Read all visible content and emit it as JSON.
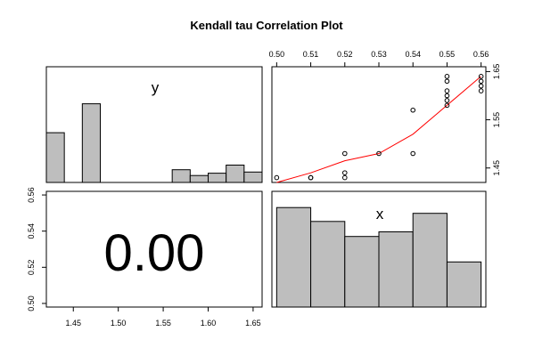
{
  "title": "Kendall tau Correlation Plot",
  "colors": {
    "bar_fill": "#bebebe",
    "smoother": "#ff0000",
    "background": "#ffffff"
  },
  "chart_data": [
    {
      "type": "bar",
      "panel": "histogram-y",
      "label": "y",
      "xlim": [
        1.42,
        1.66
      ],
      "bins": [
        {
          "from": 1.42,
          "to": 1.44,
          "height": 0.43
        },
        {
          "from": 1.46,
          "to": 1.48,
          "height": 0.68
        },
        {
          "from": 1.56,
          "to": 1.58,
          "height": 0.11
        },
        {
          "from": 1.58,
          "to": 1.6,
          "height": 0.06
        },
        {
          "from": 1.6,
          "to": 1.62,
          "height": 0.08
        },
        {
          "from": 1.62,
          "to": 1.64,
          "height": 0.15
        },
        {
          "from": 1.64,
          "to": 1.66,
          "height": 0.09
        }
      ]
    },
    {
      "type": "scatter",
      "panel": "x-vs-y",
      "xlim": [
        0.5,
        0.56
      ],
      "ylim": [
        1.42,
        1.66
      ],
      "x_ticks": [
        "0.50",
        "0.51",
        "0.52",
        "0.53",
        "0.54",
        "0.55",
        "0.56"
      ],
      "y_ticks": [
        "1.45",
        "1.55",
        "1.65"
      ],
      "points": [
        [
          0.5,
          1.43
        ],
        [
          0.51,
          1.43
        ],
        [
          0.51,
          1.43
        ],
        [
          0.52,
          1.43
        ],
        [
          0.52,
          1.44
        ],
        [
          0.52,
          1.48
        ],
        [
          0.53,
          1.48
        ],
        [
          0.54,
          1.48
        ],
        [
          0.54,
          1.57
        ],
        [
          0.55,
          1.58
        ],
        [
          0.55,
          1.59
        ],
        [
          0.55,
          1.6
        ],
        [
          0.55,
          1.61
        ],
        [
          0.55,
          1.63
        ],
        [
          0.55,
          1.64
        ],
        [
          0.56,
          1.61
        ],
        [
          0.56,
          1.62
        ],
        [
          0.56,
          1.63
        ],
        [
          0.56,
          1.64
        ]
      ],
      "smoother": [
        [
          0.5,
          1.42
        ],
        [
          0.51,
          1.44
        ],
        [
          0.52,
          1.465
        ],
        [
          0.53,
          1.48
        ],
        [
          0.54,
          1.52
        ],
        [
          0.55,
          1.58
        ],
        [
          0.56,
          1.64
        ]
      ]
    },
    {
      "type": "table",
      "panel": "correlation-value",
      "value_text": "0.00",
      "x_ticks": [
        "1.45",
        "1.50",
        "1.55",
        "1.60",
        "1.65"
      ],
      "y_ticks": [
        "0.50",
        "0.52",
        "0.54",
        "0.56"
      ],
      "xlim": [
        1.42,
        1.66
      ],
      "ylim": [
        0.5,
        0.56
      ]
    },
    {
      "type": "bar",
      "panel": "histogram-x",
      "label": "x",
      "xlim": [
        0.5,
        0.56
      ],
      "bins": [
        {
          "from": 0.5,
          "to": 0.51,
          "height": 0.86
        },
        {
          "from": 0.51,
          "to": 0.52,
          "height": 0.74
        },
        {
          "from": 0.52,
          "to": 0.53,
          "height": 0.61
        },
        {
          "from": 0.53,
          "to": 0.54,
          "height": 0.65
        },
        {
          "from": 0.54,
          "to": 0.55,
          "height": 0.81
        },
        {
          "from": 0.55,
          "to": 0.56,
          "height": 0.39
        }
      ]
    }
  ]
}
